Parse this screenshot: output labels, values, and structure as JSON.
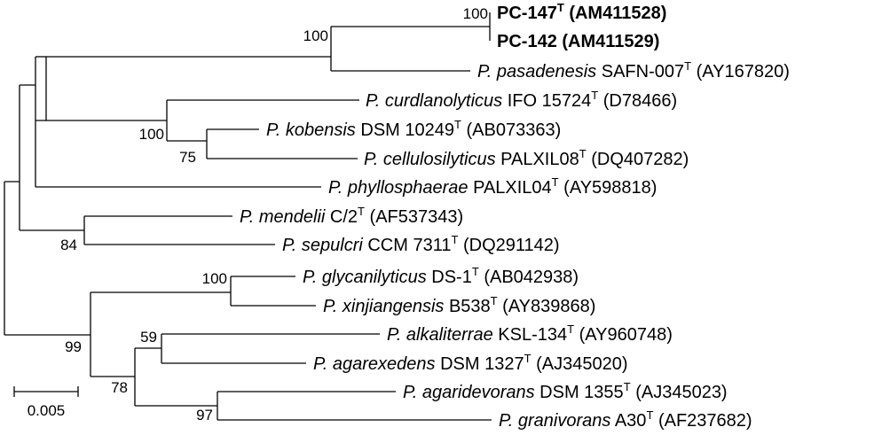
{
  "taxa": [
    {
      "genus": "",
      "epithet": "",
      "strain": "PC-147",
      "type": true,
      "acc": "(AM411528)",
      "bold": true
    },
    {
      "genus": "",
      "epithet": "",
      "strain": "PC-142",
      "type": false,
      "acc": "(AM411529)",
      "bold": true
    },
    {
      "genus": "P.",
      "epithet": "pasadenesis",
      "strain": "SAFN-007",
      "type": true,
      "acc": "(AY167820)",
      "bold": false
    },
    {
      "genus": "P.",
      "epithet": "curdlanolyticus",
      "strain": "IFO 15724",
      "type": true,
      "acc": "(D78466)",
      "bold": false
    },
    {
      "genus": "P.",
      "epithet": "kobensis",
      "strain": "DSM 10249",
      "type": true,
      "acc": "(AB073363)",
      "bold": false
    },
    {
      "genus": "P.",
      "epithet": "cellulosilyticus",
      "strain": "PALXIL08",
      "type": true,
      "acc": "(DQ407282)",
      "bold": false
    },
    {
      "genus": "P.",
      "epithet": "phyllosphaerae",
      "strain": "PALXIL04",
      "type": true,
      "acc": "(AY598818)",
      "bold": false
    },
    {
      "genus": "P.",
      "epithet": "mendelii",
      "strain": "C/2",
      "type": true,
      "acc": "(AF537343)",
      "bold": false
    },
    {
      "genus": "P.",
      "epithet": "sepulcri",
      "strain": "CCM 7311",
      "type": true,
      "acc": "(DQ291142)",
      "bold": false
    },
    {
      "genus": "P.",
      "epithet": "glycanilyticus",
      "strain": "DS-1",
      "type": true,
      "acc": "(AB042938)",
      "bold": false
    },
    {
      "genus": "P.",
      "epithet": "xinjiangensis",
      "strain": "B538",
      "type": true,
      "acc": "(AY839868)",
      "bold": false
    },
    {
      "genus": "P.",
      "epithet": "alkaliterrae",
      "strain": "KSL-134",
      "type": true,
      "acc": "(AY960748)",
      "bold": false
    },
    {
      "genus": "P.",
      "epithet": "agarexedens",
      "strain": "DSM 1327",
      "type": true,
      "acc": "(AJ345020)",
      "bold": false
    },
    {
      "genus": "P.",
      "epithet": "agaridevorans",
      "strain": "DSM 1355",
      "type": true,
      "acc": "(AJ345023)",
      "bold": false
    },
    {
      "genus": "P.",
      "epithet": "granivorans",
      "strain": "A30",
      "type": true,
      "acc": "(AF237682)",
      "bold": false
    }
  ],
  "type_mark": "T",
  "bootstrap": [
    "100",
    "100",
    "100",
    "75",
    "84",
    "100",
    "99",
    "59",
    "78",
    "97"
  ],
  "scale_label": "0.005"
}
